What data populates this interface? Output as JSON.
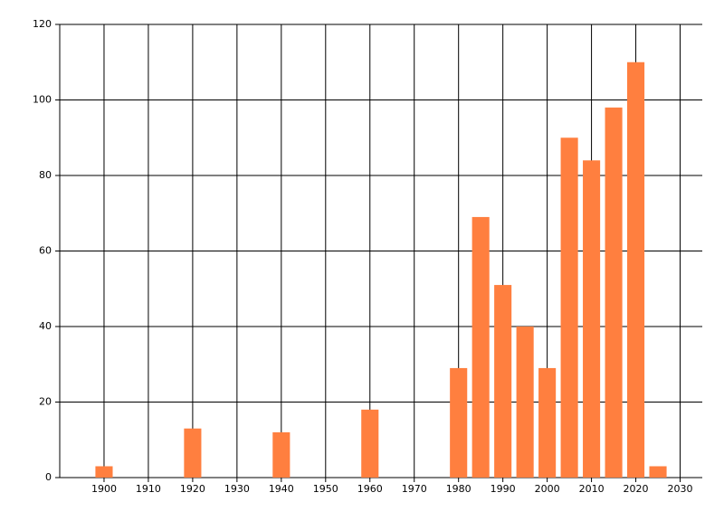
{
  "chart_data": {
    "type": "bar",
    "x": [
      1900,
      1920,
      1940,
      1960,
      1980,
      1985,
      1990,
      1995,
      2000,
      2005,
      2010,
      2015,
      2020,
      2025
    ],
    "values": [
      3,
      13,
      12,
      18,
      29,
      69,
      51,
      40,
      29,
      90,
      84,
      98,
      110,
      3
    ],
    "color": "#ff7f3f",
    "xlim": [
      1890,
      2035
    ],
    "xticks": [
      1900,
      1910,
      1920,
      1930,
      1940,
      1950,
      1960,
      1970,
      1980,
      1990,
      2000,
      2010,
      2020,
      2030
    ],
    "ylim": [
      0,
      120
    ],
    "yticks": [
      0,
      20,
      40,
      60,
      80,
      100,
      120
    ],
    "grid": true
  }
}
